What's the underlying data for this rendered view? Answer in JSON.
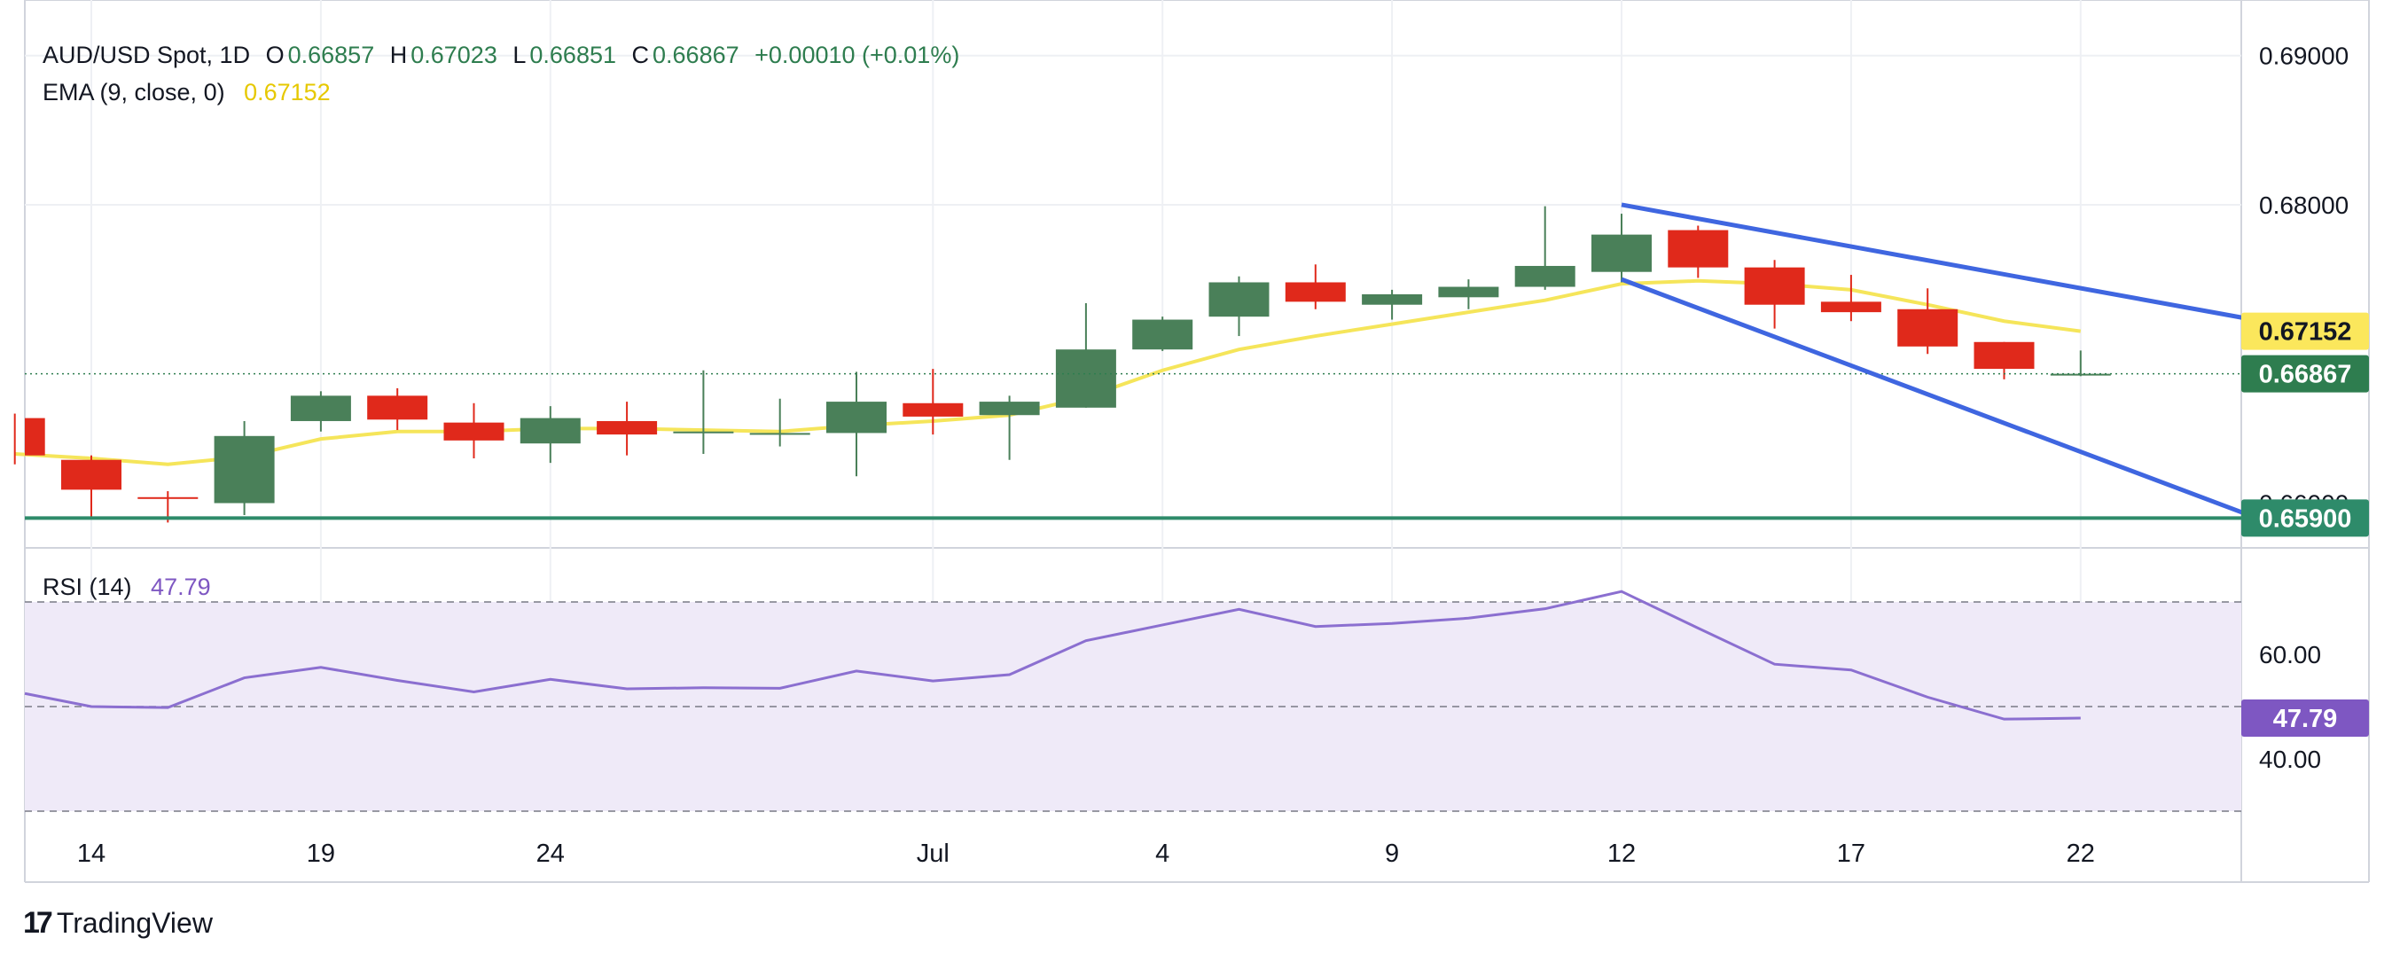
{
  "header": {
    "symbol": "AUD/USD Spot, 1D",
    "open_label": "O",
    "open": "0.66857",
    "high_label": "H",
    "high": "0.67023",
    "low_label": "L",
    "low": "0.66851",
    "close_label": "C",
    "close": "0.66867",
    "change": "+0.00010 (+0.01%)",
    "ema_label": "EMA (9, close, 0)",
    "ema_value": "0.67152",
    "rsi_label": "RSI (14)",
    "rsi_value": "47.79"
  },
  "brand": {
    "logo": "17",
    "name": "TradingView"
  },
  "colors": {
    "up": "#4a8059",
    "down": "#e0291b",
    "ema": "#f5e55a",
    "channel": "#3f66e0",
    "support": "#2e8b6a",
    "rsi": "#8b6fd0",
    "rsi_band": "#efeaf8",
    "ema_badge": "#fbe75c",
    "close_badge": "#2e7d4f",
    "support_badge": "#2e8b6a",
    "rsi_badge": "#7e57c2"
  },
  "chart_data": {
    "type": "candlestick",
    "price_axis": {
      "ylim": [
        0.657,
        0.6923
      ],
      "ticks": [
        "0.69000",
        "0.68000"
      ],
      "hidden_tick": "0.66000"
    },
    "x_ticks": [
      {
        "index": 0,
        "label": "14"
      },
      {
        "index": 3,
        "label": "19"
      },
      {
        "index": 6,
        "label": "24"
      },
      {
        "index": 11,
        "label": "Jul"
      },
      {
        "index": 14,
        "label": "4"
      },
      {
        "index": 17,
        "label": "9"
      },
      {
        "index": 20,
        "label": "12"
      },
      {
        "index": 23,
        "label": "17"
      },
      {
        "index": 26,
        "label": "22"
      }
    ],
    "candles": [
      {
        "i": -1,
        "o": 0.6657,
        "h": 0.666,
        "l": 0.6626,
        "c": 0.6632
      },
      {
        "i": 0,
        "o": 0.6629,
        "h": 0.6632,
        "l": 0.6591,
        "c": 0.6609
      },
      {
        "i": 1,
        "o": 0.6604,
        "h": 0.6608,
        "l": 0.6587,
        "c": 0.6603
      },
      {
        "i": 2,
        "o": 0.66,
        "h": 0.6655,
        "l": 0.6592,
        "c": 0.6645
      },
      {
        "i": 3,
        "o": 0.6655,
        "h": 0.6675,
        "l": 0.6648,
        "c": 0.6672
      },
      {
        "i": 4,
        "o": 0.6672,
        "h": 0.6677,
        "l": 0.6649,
        "c": 0.6656
      },
      {
        "i": 5,
        "o": 0.6654,
        "h": 0.6667,
        "l": 0.663,
        "c": 0.6642
      },
      {
        "i": 6,
        "o": 0.664,
        "h": 0.6665,
        "l": 0.6627,
        "c": 0.6657
      },
      {
        "i": 7,
        "o": 0.6655,
        "h": 0.6668,
        "l": 0.6632,
        "c": 0.6646
      },
      {
        "i": 8,
        "o": 0.6647,
        "h": 0.6689,
        "l": 0.6633,
        "c": 0.6648
      },
      {
        "i": 9,
        "o": 0.6647,
        "h": 0.667,
        "l": 0.6638,
        "c": 0.6647
      },
      {
        "i": 10,
        "o": 0.6647,
        "h": 0.6688,
        "l": 0.6618,
        "c": 0.6668
      },
      {
        "i": 11,
        "o": 0.6667,
        "h": 0.669,
        "l": 0.6646,
        "c": 0.6658
      },
      {
        "i": 12,
        "o": 0.6659,
        "h": 0.6672,
        "l": 0.6629,
        "c": 0.6668
      },
      {
        "i": 13,
        "o": 0.6664,
        "h": 0.6734,
        "l": 0.6664,
        "c": 0.6703
      },
      {
        "i": 14,
        "o": 0.6703,
        "h": 0.6725,
        "l": 0.6702,
        "c": 0.6723
      },
      {
        "i": 15,
        "o": 0.6725,
        "h": 0.6752,
        "l": 0.6712,
        "c": 0.6748
      },
      {
        "i": 16,
        "o": 0.6748,
        "h": 0.676,
        "l": 0.673,
        "c": 0.6735
      },
      {
        "i": 17,
        "o": 0.6733,
        "h": 0.6743,
        "l": 0.6723,
        "c": 0.674
      },
      {
        "i": 18,
        "o": 0.6738,
        "h": 0.675,
        "l": 0.673,
        "c": 0.6745
      },
      {
        "i": 19,
        "o": 0.6745,
        "h": 0.6799,
        "l": 0.6743,
        "c": 0.6759
      },
      {
        "i": 20,
        "o": 0.6755,
        "h": 0.6794,
        "l": 0.6748,
        "c": 0.678
      },
      {
        "i": 21,
        "o": 0.6783,
        "h": 0.6786,
        "l": 0.6751,
        "c": 0.6758
      },
      {
        "i": 22,
        "o": 0.6758,
        "h": 0.6763,
        "l": 0.6717,
        "c": 0.6733
      },
      {
        "i": 23,
        "o": 0.6735,
        "h": 0.6753,
        "l": 0.6722,
        "c": 0.6728
      },
      {
        "i": 24,
        "o": 0.673,
        "h": 0.6744,
        "l": 0.67,
        "c": 0.6705
      },
      {
        "i": 25,
        "o": 0.6708,
        "h": 0.6708,
        "l": 0.6683,
        "c": 0.669
      },
      {
        "i": 26,
        "o": 0.66857,
        "h": 0.67023,
        "l": 0.66851,
        "c": 0.66867
      }
    ],
    "ema": [
      [
        -1,
        0.6633
      ],
      [
        0,
        0.663
      ],
      [
        1,
        0.6626
      ],
      [
        2,
        0.6631
      ],
      [
        3,
        0.6643
      ],
      [
        4,
        0.6648
      ],
      [
        5,
        0.6648
      ],
      [
        6,
        0.665
      ],
      [
        7,
        0.665
      ],
      [
        8,
        0.6649
      ],
      [
        9,
        0.6648
      ],
      [
        10,
        0.6652
      ],
      [
        11,
        0.6655
      ],
      [
        12,
        0.6659
      ],
      [
        13,
        0.6671
      ],
      [
        14,
        0.6689
      ],
      [
        15,
        0.6703
      ],
      [
        16,
        0.6712
      ],
      [
        17,
        0.672
      ],
      [
        18,
        0.6728
      ],
      [
        19,
        0.6736
      ],
      [
        20,
        0.6747
      ],
      [
        21,
        0.6749
      ],
      [
        22,
        0.6747
      ],
      [
        23,
        0.6743
      ],
      [
        24,
        0.6733
      ],
      [
        25,
        0.6722
      ],
      [
        26,
        0.67152
      ]
    ],
    "current_price": 0.66867,
    "ema_last": 0.67152,
    "support": {
      "value": 0.659,
      "label": "0.65900"
    },
    "channel": {
      "upper": [
        [
          20,
          0.68
        ],
        [
          28.15,
          0.6724
        ]
      ],
      "lower": [
        [
          20,
          0.675
        ],
        [
          28.15,
          0.6593
        ]
      ]
    },
    "badges": {
      "ema": "0.67152",
      "close": "0.66867",
      "support": "0.65900",
      "rsi": "47.79"
    },
    "rsi": {
      "ylim": [
        30,
        80
      ],
      "ticks": [
        "60.00",
        "40.00"
      ],
      "band": [
        30,
        70
      ],
      "midline": 50,
      "values": [
        [
          -1,
          52.5
        ],
        [
          0,
          50.0
        ],
        [
          1,
          49.8
        ],
        [
          2,
          55.5
        ],
        [
          3,
          57.5
        ],
        [
          4,
          55.0
        ],
        [
          5,
          52.8
        ],
        [
          6,
          55.2
        ],
        [
          7,
          53.4
        ],
        [
          8,
          53.6
        ],
        [
          9,
          53.5
        ],
        [
          10,
          56.8
        ],
        [
          11,
          54.9
        ],
        [
          12,
          56.1
        ],
        [
          13,
          62.6
        ],
        [
          14,
          65.6
        ],
        [
          15,
          68.6
        ],
        [
          16,
          65.3
        ],
        [
          17,
          65.9
        ],
        [
          18,
          66.9
        ],
        [
          19,
          68.7
        ],
        [
          20,
          72.0
        ],
        [
          21,
          65.0
        ],
        [
          22,
          58.1
        ],
        [
          23,
          57.0
        ],
        [
          24,
          51.8
        ],
        [
          25,
          47.6
        ],
        [
          26,
          47.79
        ]
      ]
    }
  }
}
